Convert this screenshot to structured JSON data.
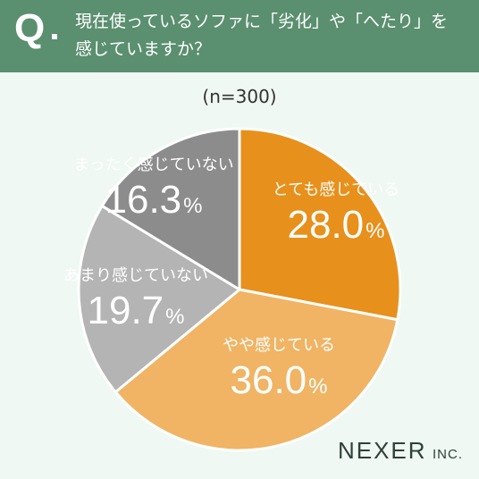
{
  "header": {
    "q": "Q",
    "line1": "現在使っているソファに「劣化」や「へたり」を",
    "line2": "感じていますか？"
  },
  "n_label": "(n=300)",
  "brand": {
    "name": "NEXER",
    "suffix": "INC."
  },
  "chart_data": {
    "type": "pie",
    "start": "12 o'clock",
    "direction": "clockwise",
    "slices": [
      {
        "label": "とても感じている",
        "value": 28.0,
        "value_text": "28.0",
        "color": "#e8901c",
        "text_color": "#ffffff"
      },
      {
        "label": "やや感じている",
        "value": 36.0,
        "value_text": "36.0",
        "color": "#f0b464",
        "text_color": "#ffffff"
      },
      {
        "label": "あまり感じていない",
        "value": 19.7,
        "value_text": "19.7",
        "color": "#b4b4b4",
        "text_color": "#ffffff"
      },
      {
        "label": "まったく感じていない",
        "value": 16.3,
        "value_text": "16.3",
        "color": "#8c8c8c",
        "text_color": "#ffffff"
      }
    ],
    "percent_sign": "%"
  }
}
